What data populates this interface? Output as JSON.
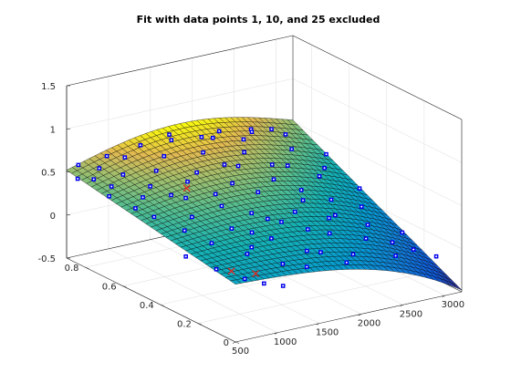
{
  "chart_data": {
    "type": "surface",
    "title": "Fit with data points 1, 10, and 25 excluded",
    "xlim": [
      500,
      3200
    ],
    "ylim": [
      0,
      0.9
    ],
    "zlim": [
      -0.5,
      1.5
    ],
    "x_ticks": [
      "500",
      "1000",
      "1500",
      "2000",
      "2500",
      "3000"
    ],
    "x_tick_values": [
      500,
      1000,
      1500,
      2000,
      2500,
      3000
    ],
    "y_ticks": [
      "0",
      "0.2",
      "0.4",
      "0.6",
      "0.8"
    ],
    "y_tick_values": [
      0,
      0.2,
      0.4,
      0.6,
      0.8
    ],
    "z_ticks": [
      "-0.5",
      "0",
      "0.5",
      "1",
      "1.5"
    ],
    "z_tick_values": [
      -0.5,
      0,
      0.5,
      1,
      1.5
    ],
    "grid": true,
    "colormap": "parula",
    "included_marker": "blue square with white dot",
    "excluded_marker": "red x",
    "included_points": [
      [
        520,
        0.85,
        0.47
      ],
      [
        560,
        0.7,
        0.42
      ],
      [
        600,
        0.8,
        0.5
      ],
      [
        650,
        0.6,
        0.37
      ],
      [
        700,
        0.75,
        0.45
      ],
      [
        760,
        0.55,
        0.3
      ],
      [
        800,
        0.86,
        0.52
      ],
      [
        850,
        0.65,
        0.4
      ],
      [
        900,
        0.45,
        0.22
      ],
      [
        950,
        0.8,
        0.48
      ],
      [
        1000,
        0.35,
        0.16
      ],
      [
        1050,
        0.7,
        0.43
      ],
      [
        1100,
        0.5,
        0.28
      ],
      [
        1150,
        0.88,
        0.55
      ],
      [
        1200,
        0.25,
        0.1
      ],
      [
        1250,
        0.6,
        0.36
      ],
      [
        1300,
        0.78,
        0.47
      ],
      [
        1350,
        0.4,
        0.2
      ],
      [
        1400,
        0.15,
        0.05
      ],
      [
        1450,
        0.68,
        0.42
      ],
      [
        1500,
        0.52,
        0.3
      ],
      [
        1550,
        0.85,
        0.51
      ],
      [
        1600,
        0.3,
        0.14
      ],
      [
        1650,
        0.72,
        0.44
      ],
      [
        1700,
        0.45,
        0.25
      ],
      [
        1750,
        0.9,
        0.6
      ],
      [
        1800,
        0.2,
        0.06
      ],
      [
        1850,
        0.62,
        0.38
      ],
      [
        1900,
        0.38,
        0.18
      ],
      [
        1950,
        0.82,
        0.5
      ],
      [
        2000,
        0.55,
        0.32
      ],
      [
        2050,
        0.1,
        -0.02
      ],
      [
        2100,
        0.7,
        0.44
      ],
      [
        2150,
        0.42,
        0.2
      ],
      [
        2200,
        0.88,
        0.55
      ],
      [
        2250,
        0.28,
        0.08
      ],
      [
        2300,
        0.6,
        0.35
      ],
      [
        2350,
        0.78,
        0.46
      ],
      [
        2400,
        0.35,
        0.15
      ],
      [
        2450,
        0.52,
        0.28
      ],
      [
        2500,
        0.85,
        0.5
      ],
      [
        2550,
        0.22,
        0.02
      ],
      [
        2600,
        0.66,
        0.38
      ],
      [
        2650,
        0.45,
        0.2
      ],
      [
        2700,
        0.9,
        0.52
      ],
      [
        2750,
        0.3,
        0.05
      ],
      [
        2800,
        0.58,
        0.3
      ],
      [
        2850,
        0.75,
        0.42
      ],
      [
        2900,
        0.4,
        0.12
      ],
      [
        2950,
        0.62,
        0.32
      ],
      [
        3000,
        0.85,
        0.45
      ],
      [
        3050,
        0.25,
        -0.05
      ],
      [
        3100,
        0.5,
        0.18
      ],
      [
        3150,
        0.7,
        0.35
      ],
      [
        580,
        0.3,
        0.15
      ],
      [
        720,
        0.2,
        0.08
      ],
      [
        880,
        0.12,
        0.02
      ],
      [
        1020,
        0.08,
        -0.02
      ],
      [
        1180,
        0.05,
        -0.05
      ],
      [
        1320,
        0.28,
        0.12
      ],
      [
        1480,
        0.35,
        0.18
      ],
      [
        1620,
        0.12,
        0.0
      ],
      [
        1780,
        0.4,
        0.22
      ],
      [
        1920,
        0.18,
        0.04
      ],
      [
        2080,
        0.32,
        0.12
      ],
      [
        2240,
        0.15,
        -0.02
      ],
      [
        2380,
        0.48,
        0.22
      ],
      [
        2540,
        0.38,
        0.12
      ],
      [
        2680,
        0.12,
        -0.1
      ],
      [
        2820,
        0.2,
        -0.06
      ],
      [
        2960,
        0.15,
        -0.12
      ],
      [
        3120,
        0.1,
        -0.18
      ],
      [
        640,
        0.9,
        0.55
      ],
      [
        980,
        0.9,
        0.58
      ],
      [
        1380,
        0.9,
        0.62
      ],
      [
        1680,
        0.88,
        0.7
      ],
      [
        2020,
        0.86,
        0.62
      ],
      [
        2320,
        0.9,
        0.58
      ],
      [
        2620,
        0.86,
        0.55
      ],
      [
        2900,
        0.88,
        0.5
      ],
      [
        1120,
        0.62,
        0.4
      ],
      [
        1560,
        0.58,
        0.36
      ],
      [
        1980,
        0.72,
        0.46
      ],
      [
        2460,
        0.68,
        0.4
      ]
    ],
    "excluded_points": [
      [
        1150,
        0.55,
        0.55
      ],
      [
        1300,
        0.25,
        -0.15
      ],
      [
        900,
        0.2,
        0.02
      ]
    ]
  }
}
